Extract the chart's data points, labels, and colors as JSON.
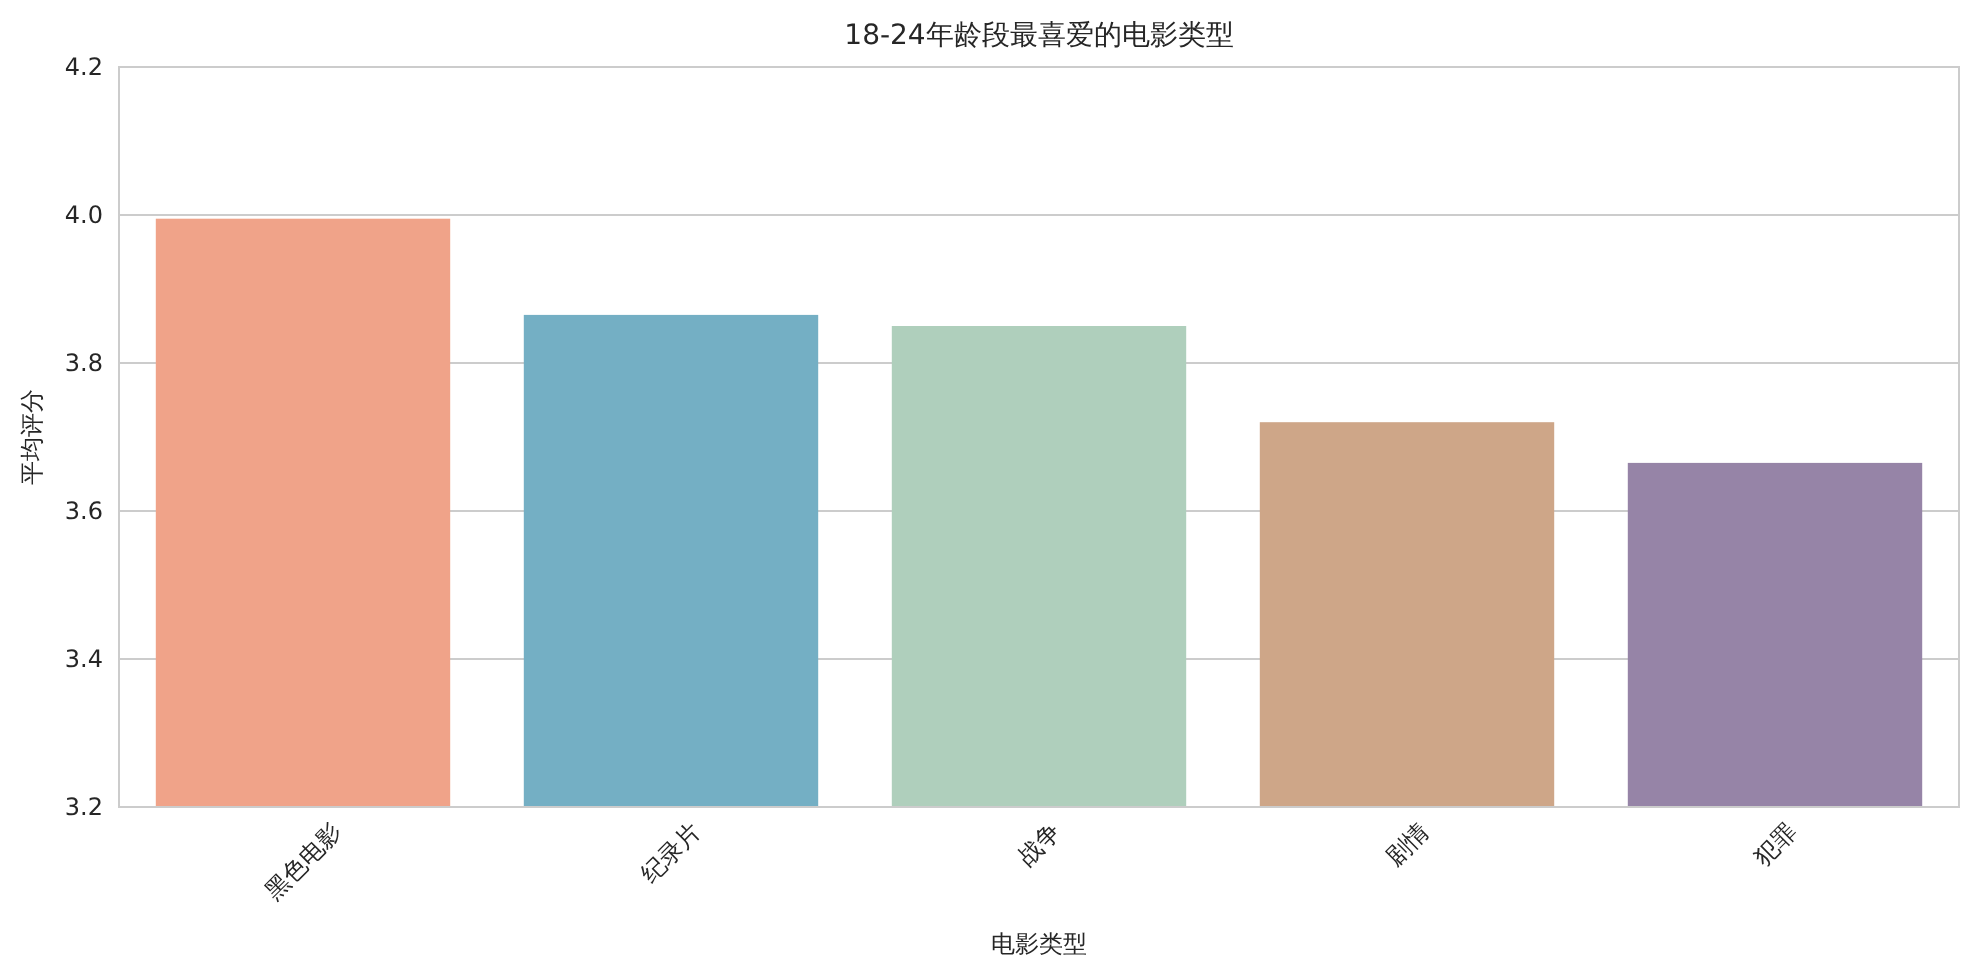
{
  "chart_data": {
    "type": "bar",
    "title": "18-24年龄段最喜爱的电影类型",
    "xlabel": "电影类型",
    "ylabel": "平均评分",
    "categories": [
      "黑色电影",
      "纪录片",
      "战争",
      "剧情",
      "犯罪"
    ],
    "values": [
      3.995,
      3.865,
      3.85,
      3.72,
      3.665
    ],
    "colors": [
      "#f0a389",
      "#74afc4",
      "#afcfbc",
      "#cea688",
      "#9684a7"
    ],
    "ylim": [
      3.2,
      4.2
    ],
    "yticks": [
      3.2,
      3.4,
      3.6,
      3.8,
      {
        "value": 4,
        "label": "4.0"
      },
      4.2
    ],
    "grid": "y"
  }
}
